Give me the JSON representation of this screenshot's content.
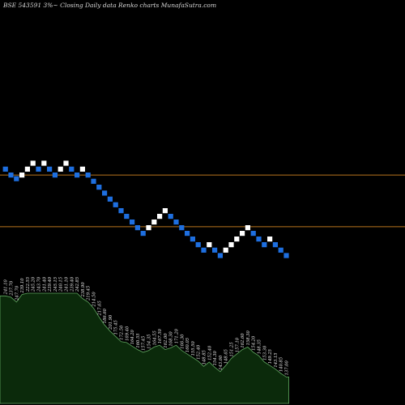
{
  "chart_data": {
    "type": "renko",
    "title": "BSE 543591 3%~  Closing Daily data  Renko  charts MunafaSutra.com",
    "colors": {
      "background": "#000000",
      "up_brick": "#ffffff",
      "down_brick": "#1e6fe0",
      "level_line": "#b8741e",
      "volume_fill": "#0b2a0b",
      "volume_line": "#5fa65f"
    },
    "horizontal_levels": [
      249.2,
      229.2
    ],
    "bricks": [
      {
        "value": 251.5,
        "dir": "down"
      },
      {
        "value": 249.2,
        "dir": "down"
      },
      {
        "value": 247.8,
        "dir": "down"
      },
      {
        "value": 249.2,
        "dir": "up"
      },
      {
        "value": 251.5,
        "dir": "up"
      },
      {
        "value": 253.8,
        "dir": "up"
      },
      {
        "value": 251.5,
        "dir": "down"
      },
      {
        "value": 253.8,
        "dir": "up"
      },
      {
        "value": 251.5,
        "dir": "down"
      },
      {
        "value": 249.2,
        "dir": "down"
      },
      {
        "value": 251.5,
        "dir": "up"
      },
      {
        "value": 253.8,
        "dir": "up"
      },
      {
        "value": 251.5,
        "dir": "down"
      },
      {
        "value": 249.2,
        "dir": "down"
      },
      {
        "value": 251.5,
        "dir": "up"
      },
      {
        "value": 249.2,
        "dir": "down"
      },
      {
        "value": 246.8,
        "dir": "down"
      },
      {
        "value": 244.5,
        "dir": "down"
      },
      {
        "value": 242.2,
        "dir": "down"
      },
      {
        "value": 239.9,
        "dir": "down"
      },
      {
        "value": 237.7,
        "dir": "down"
      },
      {
        "value": 235.4,
        "dir": "down"
      },
      {
        "value": 233.2,
        "dir": "down"
      },
      {
        "value": 231.0,
        "dir": "down"
      },
      {
        "value": 228.8,
        "dir": "down"
      },
      {
        "value": 226.6,
        "dir": "down"
      },
      {
        "value": 228.8,
        "dir": "up"
      },
      {
        "value": 231.0,
        "dir": "up"
      },
      {
        "value": 233.2,
        "dir": "up"
      },
      {
        "value": 235.4,
        "dir": "up"
      },
      {
        "value": 233.2,
        "dir": "down"
      },
      {
        "value": 231.0,
        "dir": "down"
      },
      {
        "value": 228.8,
        "dir": "down"
      },
      {
        "value": 226.6,
        "dir": "down"
      },
      {
        "value": 224.4,
        "dir": "down"
      },
      {
        "value": 222.2,
        "dir": "down"
      },
      {
        "value": 220.1,
        "dir": "down"
      },
      {
        "value": 222.2,
        "dir": "up"
      },
      {
        "value": 220.1,
        "dir": "down"
      },
      {
        "value": 218.0,
        "dir": "down"
      },
      {
        "value": 220.1,
        "dir": "up"
      },
      {
        "value": 222.2,
        "dir": "up"
      },
      {
        "value": 224.4,
        "dir": "up"
      },
      {
        "value": 226.6,
        "dir": "up"
      },
      {
        "value": 228.8,
        "dir": "up"
      },
      {
        "value": 226.6,
        "dir": "down"
      },
      {
        "value": 224.4,
        "dir": "down"
      },
      {
        "value": 222.2,
        "dir": "down"
      },
      {
        "value": 224.4,
        "dir": "up"
      },
      {
        "value": 222.2,
        "dir": "down"
      },
      {
        "value": 220.1,
        "dir": "down"
      },
      {
        "value": 218.0,
        "dir": "down"
      }
    ],
    "volume": [
      1220,
      1205,
      1150,
      1235,
      1250,
      1250,
      1250,
      1250,
      1250,
      1250,
      1250,
      1250,
      1250,
      1250,
      1190,
      1150,
      1080,
      980,
      890,
      820,
      760,
      700,
      690,
      650,
      610,
      580,
      600,
      640,
      660,
      610,
      630,
      660,
      600,
      560,
      520,
      480,
      420,
      470,
      410,
      360,
      430,
      510,
      560,
      610,
      640,
      580,
      540,
      470,
      430,
      390,
      340,
      300
    ],
    "brick_labels": [
      "241.10",
      "237.70",
      "247.70",
      "239.10",
      "222.55",
      "245.20",
      "243.70",
      "241.40",
      "239.40",
      "245.15",
      "240.15",
      "241.10",
      "239.40",
      "242.85",
      "238.90",
      "219.45",
      "214.50",
      "217.65",
      "186.60",
      "201.90",
      "175.45",
      "172.50",
      "169.40",
      "164.20",
      "160.55",
      "157.45",
      "154.35",
      "164.55",
      "167.50",
      "162.00",
      "168.30",
      "171.20",
      "166.30",
      "160.05",
      "155.50",
      "152.40",
      "148.85",
      "152.40",
      "154.30",
      "143.60",
      "148.65",
      "151.25",
      "157.10",
      "162.60",
      "158.30",
      "154.20",
      "148.35",
      "153.30",
      "149.25",
      "143.15",
      "140.85",
      "137.00"
    ]
  }
}
